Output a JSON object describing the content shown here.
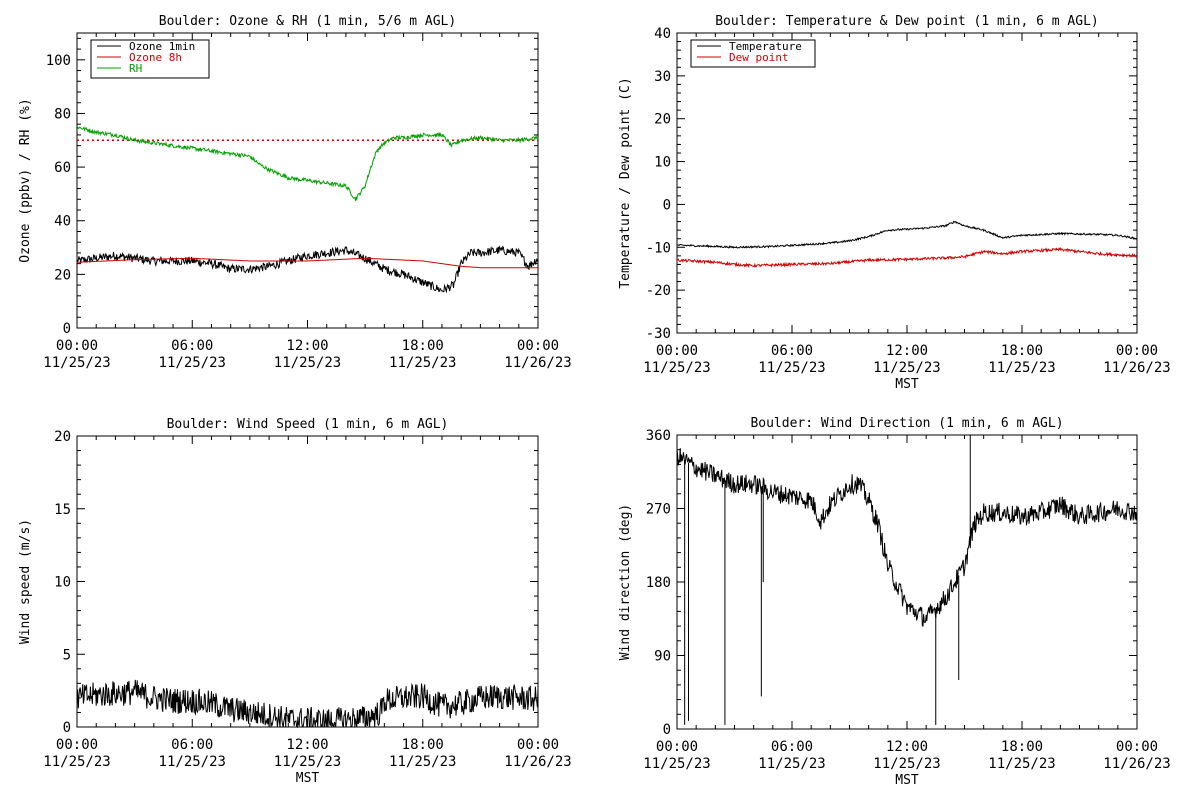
{
  "chart_data": [
    {
      "type": "line",
      "title": "Boulder: Ozone & RH (1 min, 5/6 m AGL)",
      "xlabel": "",
      "ylabel": "Ozone (ppbv) / RH (%)",
      "ylim": [
        0,
        110
      ],
      "yticks": [
        0,
        20,
        40,
        60,
        80,
        100
      ],
      "xlim": [
        "11/25/23 00:00",
        "11/26/23 00:00"
      ],
      "xticks": [
        [
          "00:00",
          "11/25/23"
        ],
        [
          "06:00",
          "11/25/23"
        ],
        [
          "12:00",
          "11/25/23"
        ],
        [
          "18:00",
          "11/25/23"
        ],
        [
          "00:00",
          "11/26/23"
        ]
      ],
      "legend_position": "top-left",
      "reference_line": {
        "y": 70,
        "style": "dotted",
        "color": "#d00000"
      },
      "series": [
        {
          "name": "Ozone 1min",
          "color": "#000000",
          "noise": 1.6,
          "hours": [
            0,
            1,
            2,
            3,
            4,
            5,
            6,
            7,
            8,
            9,
            10,
            11,
            12,
            13,
            14,
            15,
            15.5,
            16,
            17,
            18,
            19,
            19.6,
            20,
            20.5,
            21,
            22,
            23,
            23.5,
            24
          ],
          "values": [
            25,
            26,
            27,
            26,
            25,
            25,
            25,
            24,
            22,
            22,
            23,
            25,
            27,
            28,
            29,
            26,
            24,
            22,
            20,
            17,
            14,
            16,
            24,
            28,
            28,
            29,
            28,
            23,
            26
          ]
        },
        {
          "name": "Ozone 8h",
          "color": "#d00000",
          "noise": 0,
          "hours": [
            0,
            3,
            6,
            9,
            12,
            15,
            18,
            20,
            21,
            24
          ],
          "values": [
            24.5,
            25.5,
            26,
            25,
            25,
            26,
            25,
            23,
            22.5,
            22.5
          ]
        },
        {
          "name": "RH",
          "color": "#00a000",
          "noise": 0.7,
          "hours": [
            0,
            1,
            2,
            3,
            4,
            5,
            6,
            7,
            8,
            9,
            9.5,
            10,
            11,
            12,
            13,
            14,
            14.5,
            15,
            15.3,
            15.6,
            16,
            16.5,
            17,
            18,
            19,
            19.5,
            20,
            21,
            22,
            23,
            24
          ],
          "values": [
            75,
            73,
            72,
            70,
            69,
            68,
            67,
            66,
            65,
            64,
            61,
            59,
            56,
            55,
            54,
            53,
            48,
            53,
            60,
            66,
            69,
            71,
            71,
            72,
            72,
            68,
            70,
            71,
            70,
            70,
            71
          ]
        }
      ]
    },
    {
      "type": "line",
      "title": "Boulder: Temperature & Dew point (1 min, 6 m AGL)",
      "xlabel": "MST",
      "ylabel": "Temperature / Dew point (C)",
      "ylim": [
        -30,
        40
      ],
      "yticks": [
        -30,
        -20,
        -10,
        0,
        10,
        20,
        30,
        40
      ],
      "xlim": [
        "11/25/23 00:00",
        "11/26/23 00:00"
      ],
      "xticks": [
        [
          "00:00",
          "11/25/23"
        ],
        [
          "06:00",
          "11/25/23"
        ],
        [
          "12:00",
          "11/25/23"
        ],
        [
          "18:00",
          "11/25/23"
        ],
        [
          "00:00",
          "11/26/23"
        ]
      ],
      "legend_position": "top-left",
      "series": [
        {
          "name": "Temperature",
          "color": "#000000",
          "noise": 0.2,
          "hours": [
            0,
            2,
            3,
            5,
            7,
            8,
            9,
            10,
            11,
            12,
            13,
            14,
            14.5,
            15,
            16,
            17,
            18,
            19,
            20,
            22,
            23,
            24
          ],
          "values": [
            -9.5,
            -9.8,
            -10,
            -9.8,
            -9.3,
            -9,
            -8.5,
            -7.5,
            -6,
            -5.8,
            -5.5,
            -5,
            -4,
            -5,
            -6,
            -7.8,
            -7.2,
            -7,
            -6.8,
            -7,
            -7.2,
            -8
          ]
        },
        {
          "name": "Dew point",
          "color": "#d00000",
          "noise": 0.3,
          "hours": [
            0,
            2,
            3,
            4,
            6,
            8,
            10,
            12,
            14,
            15,
            16,
            17,
            18,
            20,
            22,
            24
          ],
          "values": [
            -13,
            -13.5,
            -14,
            -14.3,
            -14,
            -13.8,
            -13,
            -12.8,
            -12.5,
            -12.2,
            -11,
            -11.5,
            -11,
            -10.5,
            -11.5,
            -12
          ]
        }
      ]
    },
    {
      "type": "line",
      "title": "Boulder: Wind Speed (1 min, 6 m AGL)",
      "xlabel": "MST",
      "ylabel": "Wind speed (m/s)",
      "ylim": [
        0,
        20
      ],
      "yticks": [
        0,
        5,
        10,
        15,
        20
      ],
      "xlim": [
        "11/25/23 00:00",
        "11/26/23 00:00"
      ],
      "xticks": [
        [
          "00:00",
          "11/25/23"
        ],
        [
          "06:00",
          "11/25/23"
        ],
        [
          "12:00",
          "11/25/23"
        ],
        [
          "18:00",
          "11/25/23"
        ],
        [
          "00:00",
          "11/26/23"
        ]
      ],
      "series": [
        {
          "name": "",
          "color": "#000000",
          "noise": 0.9,
          "hours": [
            0,
            1,
            2,
            3,
            4,
            5,
            6,
            7,
            8,
            9,
            10,
            11,
            12,
            13,
            14,
            15,
            15.8,
            16,
            17,
            18,
            19,
            20,
            21,
            22,
            23,
            24
          ],
          "values": [
            2,
            2.2,
            2.3,
            2.4,
            2,
            1.8,
            1.8,
            1.6,
            1.2,
            1,
            0.8,
            0.5,
            0.5,
            0.4,
            0.5,
            0.6,
            1,
            1.8,
            2,
            2.1,
            1.4,
            1.6,
            2,
            2.1,
            2,
            1.9
          ]
        }
      ]
    },
    {
      "type": "line",
      "title": "Boulder: Wind Direction (1 min, 6 m AGL)",
      "xlabel": "MST",
      "ylabel": "Wind direction (deg)",
      "ylim": [
        0,
        360
      ],
      "yticks": [
        0,
        90,
        180,
        270,
        360
      ],
      "xlim": [
        "11/25/23 00:00",
        "11/26/23 00:00"
      ],
      "xticks": [
        [
          "00:00",
          "11/25/23"
        ],
        [
          "06:00",
          "11/25/23"
        ],
        [
          "12:00",
          "11/25/23"
        ],
        [
          "18:00",
          "11/25/23"
        ],
        [
          "00:00",
          "11/26/23"
        ]
      ],
      "series": [
        {
          "name": "",
          "color": "#000000",
          "noise": 12,
          "hours": [
            0,
            1,
            2,
            3,
            4,
            5,
            6,
            7,
            7.5,
            8,
            9,
            9.5,
            10,
            10.5,
            11,
            12,
            13,
            14,
            15,
            15.5,
            16,
            17,
            18,
            19,
            20,
            21,
            22,
            23,
            24
          ],
          "values": [
            335,
            320,
            310,
            300,
            300,
            290,
            285,
            280,
            255,
            275,
            300,
            300,
            280,
            250,
            200,
            150,
            135,
            160,
            200,
            250,
            265,
            265,
            260,
            265,
            275,
            260,
            265,
            270,
            265
          ]
        }
      ]
    }
  ]
}
